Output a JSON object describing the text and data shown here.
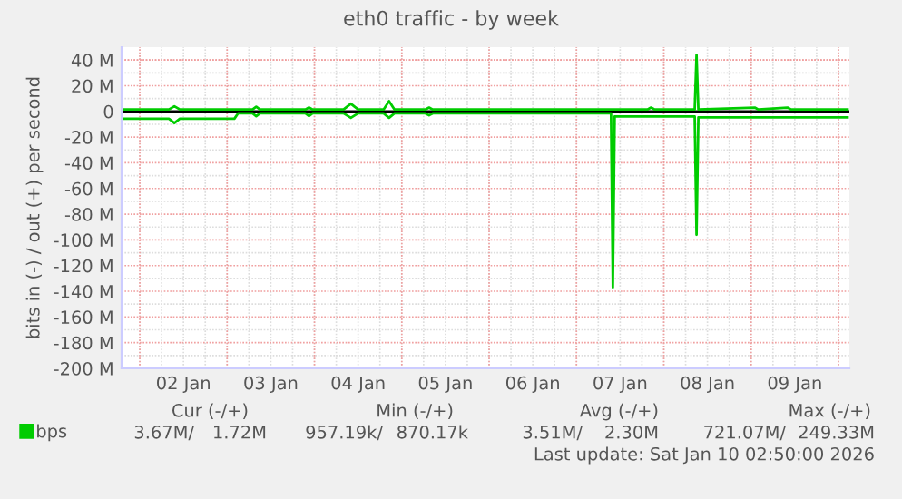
{
  "chart_data": {
    "type": "line",
    "title": "eth0 traffic - by week",
    "ylabel": "bits in (-) / out (+) per second",
    "x": [
      "2026-01-01T19:00",
      "2026-01-02T08:00",
      "2026-01-02T09:30",
      "2026-01-02T11:00",
      "2026-01-03T02:00",
      "2026-01-03T03:00",
      "2026-01-03T07:00",
      "2026-01-03T08:00",
      "2026-01-03T09:00",
      "2026-01-03T21:30",
      "2026-01-03T22:30",
      "2026-01-03T23:30",
      "2026-01-04T08:00",
      "2026-01-04T10:00",
      "2026-01-04T12:00",
      "2026-01-04T19:00",
      "2026-01-04T20:30",
      "2026-01-04T22:00",
      "2026-01-05T06:30",
      "2026-01-05T07:30",
      "2026-01-05T08:30",
      "2026-01-07T09:30",
      "2026-01-07T10:00",
      "2026-01-07T10:30",
      "2026-01-07T19:30",
      "2026-01-07T20:30",
      "2026-01-07T21:30",
      "2026-01-08T08:30",
      "2026-01-08T09:00",
      "2026-01-08T09:30",
      "2026-01-09T01:00",
      "2026-01-09T02:00",
      "2026-01-09T10:00",
      "2026-01-09T11:00",
      "2026-01-10T02:30"
    ],
    "series": [
      {
        "name": "bps",
        "color": "#00cc00",
        "values": [
          1.5,
          1.5,
          4,
          1.5,
          1.5,
          1.5,
          1.5,
          3.6,
          1.5,
          1.5,
          3,
          1.5,
          1.5,
          6,
          1.5,
          1.5,
          8,
          1.5,
          1.5,
          3,
          1.5,
          1.5,
          1.5,
          1.5,
          1.5,
          3,
          1.5,
          1.5,
          44,
          1.5,
          3,
          1.5,
          3,
          1.5,
          1.5
        ]
      },
      {
        "color": "#00cc00",
        "values": [
          -5.7,
          -5.7,
          -9,
          -5.7,
          -5.7,
          -1.5,
          -1.5,
          -3.8,
          -1.5,
          -1.5,
          -3.5,
          -1.5,
          -1.5,
          -5,
          -1.5,
          -1.5,
          -5,
          -1.5,
          -1.5,
          -3,
          -1.5,
          -1.5,
          -137,
          -4,
          -4,
          -4,
          -4,
          -4,
          -96,
          -4.7,
          -4.7,
          -4.7,
          -4.7,
          -4.7,
          -4.7
        ]
      }
    ],
    "xlim": [
      "2026-01-01T19:00",
      "2026-01-10T03:00"
    ],
    "xticks": [
      {
        "value": "2026-01-02T00:00",
        "label": null
      },
      {
        "value": "2026-01-02T12:00",
        "label": "02 Jan"
      },
      {
        "value": "2026-01-03T00:00",
        "label": null
      },
      {
        "value": "2026-01-03T12:00",
        "label": "03 Jan"
      },
      {
        "value": "2026-01-04T00:00",
        "label": null
      },
      {
        "value": "2026-01-04T12:00",
        "label": "04 Jan"
      },
      {
        "value": "2026-01-05T00:00",
        "label": null
      },
      {
        "value": "2026-01-05T12:00",
        "label": "05 Jan"
      },
      {
        "value": "2026-01-06T00:00",
        "label": null
      },
      {
        "value": "2026-01-06T12:00",
        "label": "06 Jan"
      },
      {
        "value": "2026-01-07T00:00",
        "label": null
      },
      {
        "value": "2026-01-07T12:00",
        "label": "07 Jan"
      },
      {
        "value": "2026-01-08T00:00",
        "label": null
      },
      {
        "value": "2026-01-08T12:00",
        "label": "08 Jan"
      },
      {
        "value": "2026-01-09T00:00",
        "label": null
      },
      {
        "value": "2026-01-09T12:00",
        "label": "09 Jan"
      },
      {
        "value": "2026-01-10T00:00",
        "label": null
      }
    ],
    "ylim": [
      -200,
      50
    ],
    "yticks": [
      {
        "value": 40,
        "label": "40 M"
      },
      {
        "value": 20,
        "label": "20 M"
      },
      0,
      {
        "value": -20,
        "label": "-20 M"
      },
      {
        "value": -40,
        "label": "-40 M"
      },
      {
        "value": -60,
        "label": "-60 M"
      },
      {
        "value": -80,
        "label": "-80 M"
      },
      {
        "value": -100,
        "label": "-100 M"
      },
      {
        "value": -120,
        "label": "-120 M"
      },
      {
        "value": -140,
        "label": "-140 M"
      },
      {
        "value": -160,
        "label": "-160 M"
      },
      {
        "value": -180,
        "label": "-180 M"
      },
      {
        "value": -200,
        "label": "-200 M"
      }
    ],
    "ref_lines": [
      {
        "axis": "y",
        "value": 0,
        "color": "#000000"
      }
    ],
    "grid": true,
    "legend": "bottom left",
    "marker": "none",
    "line_style": "solid",
    "annotations": [
      "Cur (-/+)",
      "Min (-/+)",
      "Avg (-/+)",
      "Max (-/+)",
      "3.67M/",
      "1.72M",
      "957.19k/",
      "870.17k",
      "3.51M/",
      "2.30M",
      "721.07M/",
      "249.33M",
      "Last update: Sat Jan 10 02:50:00 2026"
    ]
  }
}
